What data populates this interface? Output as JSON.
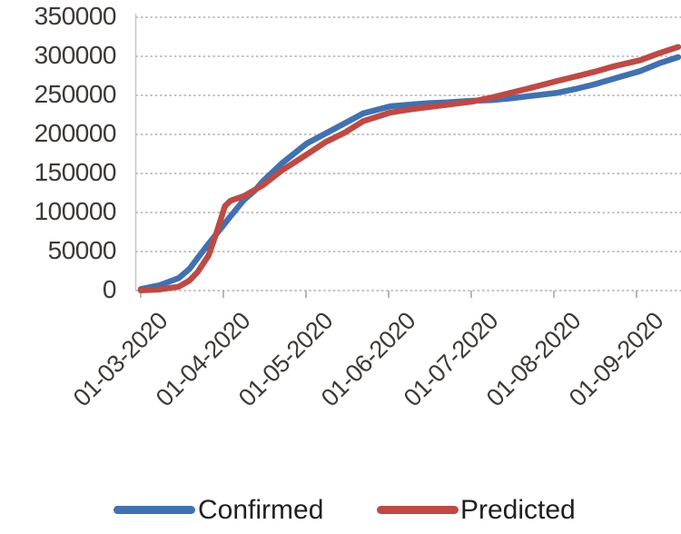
{
  "chart_data": {
    "type": "line",
    "title": "",
    "xlabel": "",
    "ylabel": "",
    "categories": [
      "01-03-2020",
      "01-04-2020",
      "01-05-2020",
      "01-06-2020",
      "01-07-2020",
      "01-08-2020",
      "01-09-2020"
    ],
    "y_ticks": [
      "0",
      "50000",
      "100000",
      "150000",
      "200000",
      "250000",
      "300000",
      "350000"
    ],
    "y_tick_values": [
      0,
      50000,
      100000,
      150000,
      200000,
      250000,
      300000,
      350000
    ],
    "ylim": [
      0,
      350000
    ],
    "grid": "horizontal-dotted",
    "legend_position": "bottom",
    "x_days_since_first": [
      0,
      7,
      14,
      18,
      21,
      25,
      28,
      31,
      33,
      38,
      42,
      45,
      52,
      61,
      68,
      75,
      82,
      92,
      99,
      106,
      113,
      122,
      129,
      136,
      143,
      153,
      160,
      167,
      174,
      184,
      191,
      198
    ],
    "series": [
      {
        "name": "Confirmed",
        "color": "#4171B0",
        "values": [
          2000,
          7000,
          16000,
          28000,
          42000,
          60000,
          73000,
          86000,
          95000,
          116000,
          128000,
          140000,
          163000,
          188000,
          201000,
          214000,
          227000,
          236000,
          238000,
          240000,
          241000,
          243000,
          244000,
          246000,
          249000,
          253000,
          258000,
          264000,
          271000,
          281000,
          291000,
          299000
        ]
      },
      {
        "name": "Predicted",
        "color": "#BE4A45",
        "values": [
          300,
          1500,
          5000,
          13000,
          24000,
          45000,
          75000,
          108000,
          115000,
          121000,
          129000,
          135000,
          154000,
          174000,
          190000,
          202000,
          217000,
          228000,
          232000,
          235000,
          238000,
          242000,
          247000,
          253000,
          259000,
          268000,
          274000,
          280000,
          287000,
          295000,
          304000,
          312000
        ]
      }
    ]
  },
  "colors": {
    "confirmed_line": "#4171B0",
    "predicted_line": "#BE4A45",
    "gridline": "#b5aea8",
    "axis_line": "#c9c4bf",
    "tick_mark": "#a9a39e",
    "axis_text": "#3d3935",
    "legend_text": "#211f1d",
    "background": "#ffffff"
  }
}
